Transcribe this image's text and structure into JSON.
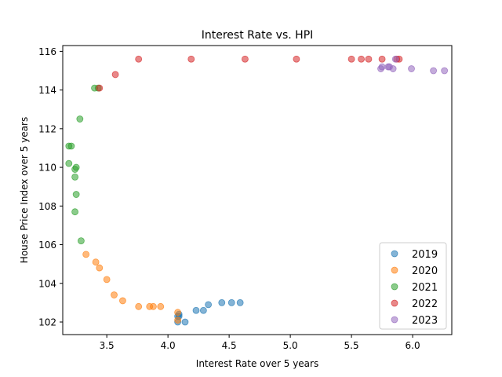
{
  "chart_data": {
    "type": "scatter",
    "title": "Interest Rate vs. HPI",
    "xlabel": "Interest Rate over 5 years",
    "ylabel": "House Price Index over 5 years",
    "xlim": [
      3.14,
      6.32
    ],
    "ylim": [
      101.35,
      116.3
    ],
    "xticks": [
      3.5,
      4.0,
      4.5,
      5.0,
      5.5,
      6.0
    ],
    "xtick_labels": [
      "3.5",
      "4.0",
      "4.5",
      "5.0",
      "5.5",
      "6.0"
    ],
    "yticks": [
      102,
      104,
      106,
      108,
      110,
      112,
      114,
      116
    ],
    "ytick_labels": [
      "102",
      "104",
      "106",
      "108",
      "110",
      "112",
      "114",
      "116"
    ],
    "grid": false,
    "legend_position": "bottom-right",
    "series": [
      {
        "name": "2019",
        "color": "#1f77b4",
        "points": [
          [
            4.08,
            102.3
          ],
          [
            4.08,
            102.0
          ],
          [
            4.09,
            102.4
          ],
          [
            4.09,
            102.3
          ],
          [
            4.14,
            102.0
          ],
          [
            4.23,
            102.6
          ],
          [
            4.29,
            102.6
          ],
          [
            4.33,
            102.9
          ],
          [
            4.44,
            103.0
          ],
          [
            4.52,
            103.0
          ],
          [
            4.59,
            103.0
          ]
        ]
      },
      {
        "name": "2020",
        "color": "#ff7f0e",
        "points": [
          [
            4.08,
            102.5
          ],
          [
            4.08,
            102.1
          ],
          [
            3.94,
            102.8
          ],
          [
            3.88,
            102.8
          ],
          [
            3.85,
            102.8
          ],
          [
            3.76,
            102.8
          ],
          [
            3.63,
            103.1
          ],
          [
            3.56,
            103.4
          ],
          [
            3.5,
            104.2
          ],
          [
            3.44,
            104.8
          ],
          [
            3.41,
            105.1
          ],
          [
            3.33,
            105.5
          ]
        ]
      },
      {
        "name": "2021",
        "color": "#2ca02c",
        "points": [
          [
            3.29,
            106.2
          ],
          [
            3.24,
            107.7
          ],
          [
            3.25,
            108.6
          ],
          [
            3.24,
            109.5
          ],
          [
            3.24,
            109.9
          ],
          [
            3.25,
            110.0
          ],
          [
            3.19,
            110.2
          ],
          [
            3.19,
            111.1
          ],
          [
            3.21,
            111.1
          ],
          [
            3.28,
            112.5
          ],
          [
            3.4,
            114.1
          ],
          [
            3.43,
            114.1
          ]
        ]
      },
      {
        "name": "2022",
        "color": "#d62728",
        "points": [
          [
            3.44,
            114.1
          ],
          [
            3.57,
            114.8
          ],
          [
            3.76,
            115.6
          ],
          [
            4.19,
            115.6
          ],
          [
            4.63,
            115.6
          ],
          [
            5.05,
            115.6
          ],
          [
            5.5,
            115.6
          ],
          [
            5.58,
            115.6
          ],
          [
            5.64,
            115.6
          ],
          [
            5.75,
            115.6
          ],
          [
            5.87,
            115.6
          ],
          [
            5.89,
            115.6
          ]
        ]
      },
      {
        "name": "2023",
        "color": "#9467bd",
        "points": [
          [
            5.74,
            115.1
          ],
          [
            5.75,
            115.2
          ],
          [
            5.8,
            115.2
          ],
          [
            5.81,
            115.2
          ],
          [
            5.84,
            115.1
          ],
          [
            5.86,
            115.6
          ],
          [
            5.99,
            115.1
          ],
          [
            6.17,
            115.0
          ],
          [
            6.26,
            115.0
          ]
        ]
      }
    ]
  }
}
